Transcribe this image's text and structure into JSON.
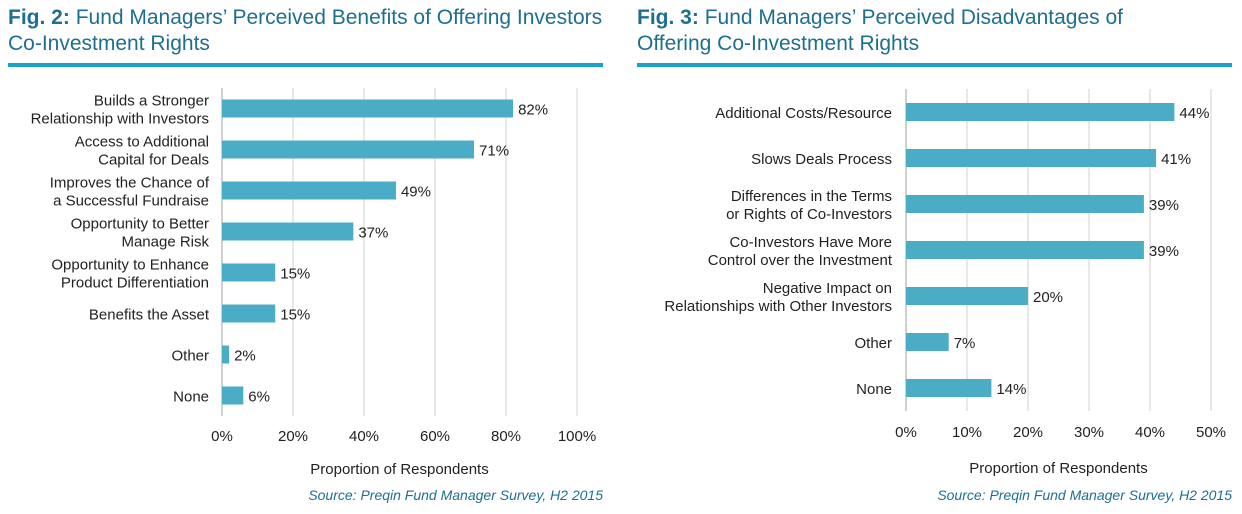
{
  "colors": {
    "bar": "#4bacc6",
    "title": "#1d6f8f",
    "rule": "#17a2c6",
    "grid": "#d0d0d0"
  },
  "chart_data": [
    {
      "type": "bar",
      "orientation": "horizontal",
      "fig_label": "Fig. 2:",
      "title": "Fund Managers’ Perceived Benefits of Offering Investors Co-Investment Rights",
      "categories": [
        [
          "Builds a Stronger",
          "Relationship with Investors"
        ],
        [
          "Access to Additional",
          "Capital for Deals"
        ],
        [
          "Improves the Chance of",
          "a Successful Fundraise"
        ],
        [
          "Opportunity to Better",
          "Manage Risk"
        ],
        [
          "Opportunity to Enhance",
          "Product Differentiation"
        ],
        [
          "Benefits the Asset"
        ],
        [
          "Other"
        ],
        [
          "None"
        ]
      ],
      "values": [
        82,
        71,
        49,
        37,
        15,
        15,
        2,
        6
      ],
      "data_labels": [
        "82%",
        "71%",
        "49%",
        "37%",
        "15%",
        "15%",
        "2%",
        "6%"
      ],
      "xlim": [
        0,
        100
      ],
      "xticks": [
        "0%",
        "20%",
        "40%",
        "60%",
        "80%",
        "100%"
      ],
      "xlabel": "Proportion of Respondents",
      "grid": true,
      "source": "Source: Preqin Fund Manager Survey, H2 2015"
    },
    {
      "type": "bar",
      "orientation": "horizontal",
      "fig_label": "Fig. 3:",
      "title": "Fund Managers’ Perceived Disadvantages of Offering Co-Investment Rights",
      "categories": [
        [
          "Additional Costs/Resource"
        ],
        [
          "Slows Deals Process"
        ],
        [
          "Differences in the Terms",
          "or Rights of Co-Investors"
        ],
        [
          "Co-Investors Have More",
          "Control over the Investment"
        ],
        [
          "Negative Impact on",
          "Relationships with Other Investors"
        ],
        [
          "Other"
        ],
        [
          "None"
        ]
      ],
      "values": [
        44,
        41,
        39,
        39,
        20,
        7,
        14
      ],
      "data_labels": [
        "44%",
        "41%",
        "39%",
        "39%",
        "20%",
        "7%",
        "14%"
      ],
      "xlim": [
        0,
        50
      ],
      "xticks": [
        "0%",
        "10%",
        "20%",
        "30%",
        "40%",
        "50%"
      ],
      "xlabel": "Proportion of Respondents",
      "grid": true,
      "source": "Source: Preqin Fund Manager Survey, H2 2015"
    }
  ]
}
